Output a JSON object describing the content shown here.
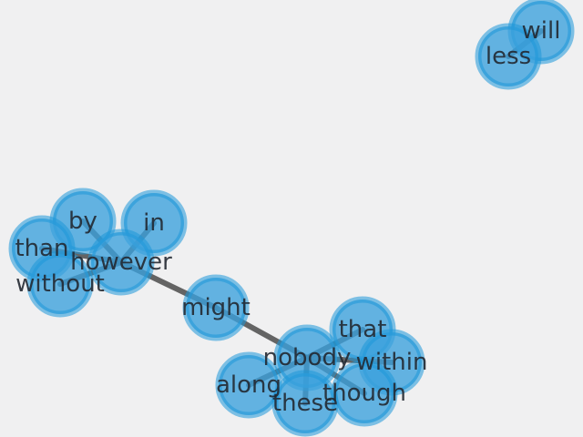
{
  "graph": {
    "node_color": "#3aa0dc",
    "edge_color": "#555555",
    "background": "#f0f0f1",
    "nodes": [
      {
        "id": "will",
        "label": "will"
      },
      {
        "id": "less",
        "label": "less"
      },
      {
        "id": "by",
        "label": "by"
      },
      {
        "id": "in",
        "label": "in"
      },
      {
        "id": "than",
        "label": "than"
      },
      {
        "id": "however",
        "label": "however"
      },
      {
        "id": "without",
        "label": "without"
      },
      {
        "id": "might",
        "label": "might"
      },
      {
        "id": "that",
        "label": "that"
      },
      {
        "id": "nobody",
        "label": "nobody"
      },
      {
        "id": "within",
        "label": "within"
      },
      {
        "id": "along",
        "label": "along"
      },
      {
        "id": "though",
        "label": "though"
      },
      {
        "id": "these",
        "label": "these"
      }
    ],
    "edges": [
      {
        "source": "will",
        "target": "less"
      },
      {
        "source": "by",
        "target": "however"
      },
      {
        "source": "in",
        "target": "however"
      },
      {
        "source": "than",
        "target": "however"
      },
      {
        "source": "without",
        "target": "however"
      },
      {
        "source": "however",
        "target": "might"
      },
      {
        "source": "might",
        "target": "nobody"
      },
      {
        "source": "nobody",
        "target": "that"
      },
      {
        "source": "nobody",
        "target": "within"
      },
      {
        "source": "nobody",
        "target": "along"
      },
      {
        "source": "nobody",
        "target": "though"
      },
      {
        "source": "nobody",
        "target": "these"
      }
    ]
  }
}
